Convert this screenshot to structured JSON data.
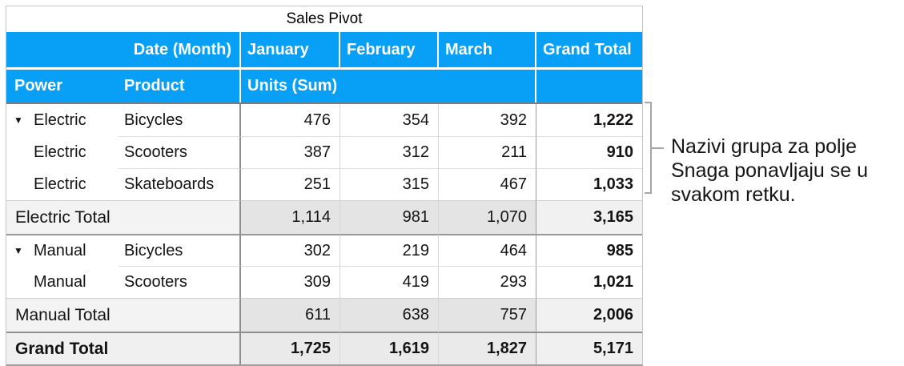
{
  "title": "Sales Pivot",
  "colors": {
    "header_blue": "#089ff7",
    "header_text": "#ffffff",
    "subtotal_month_bg": "#e4e4e4",
    "subtotal_label_bg": "#f3f3f3",
    "grandtotal_bg": "#eaeaea",
    "bracket_gray": "#a6a6a6"
  },
  "icons": {
    "disclosure": "▼"
  },
  "header": {
    "row1": {
      "corner": "Date (Month)",
      "months": [
        "January",
        "February",
        "March"
      ],
      "grand": "Grand Total"
    },
    "row2": {
      "power": "Power",
      "product": "Product",
      "units": "Units (Sum)"
    }
  },
  "rows": [
    {
      "type": "data",
      "power": "Electric",
      "product": "Bicycles",
      "jan": "476",
      "feb": "354",
      "mar": "392",
      "total": "1,222"
    },
    {
      "type": "data",
      "power": "Electric",
      "product": "Scooters",
      "jan": "387",
      "feb": "312",
      "mar": "211",
      "total": "910"
    },
    {
      "type": "data",
      "power": "Electric",
      "product": "Skateboards",
      "jan": "251",
      "feb": "315",
      "mar": "467",
      "total": "1,033"
    },
    {
      "type": "subtotal",
      "label": "Electric Total",
      "jan": "1,114",
      "feb": "981",
      "mar": "1,070",
      "total": "3,165"
    },
    {
      "type": "data",
      "power": "Manual",
      "product": "Bicycles",
      "jan": "302",
      "feb": "219",
      "mar": "464",
      "total": "985"
    },
    {
      "type": "data",
      "power": "Manual",
      "product": "Scooters",
      "jan": "309",
      "feb": "419",
      "mar": "293",
      "total": "1,021"
    },
    {
      "type": "subtotal",
      "label": "Manual Total",
      "jan": "611",
      "feb": "638",
      "mar": "757",
      "total": "2,006"
    },
    {
      "type": "grandtotal",
      "label": "Grand Total",
      "jan": "1,725",
      "feb": "1,619",
      "mar": "1,827",
      "total": "5,171"
    }
  ],
  "annotation": {
    "lines": [
      "Nazivi grupa za polje",
      "Snaga ponavljaju se u",
      "svakom retku."
    ]
  }
}
